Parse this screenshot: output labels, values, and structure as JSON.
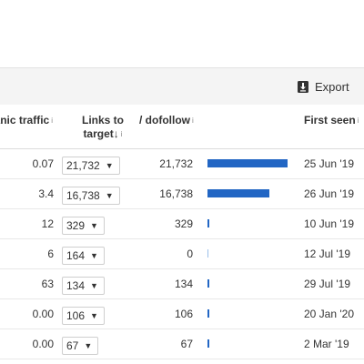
{
  "toolbar": {
    "export_label": "Export"
  },
  "columns": {
    "organic_traffic": "anic traffic",
    "links_to_target_line1": "Links to",
    "links_to_target_line2": "target",
    "dofollow": "/ dofollow",
    "first_seen": "First seen",
    "info_mark": "i",
    "sort_arrow": "↓"
  },
  "colors": {
    "bar": "#2266c4",
    "toolbar_bg": "#f4f4f4"
  },
  "rows": [
    {
      "organic_traffic": "0.07",
      "links_to_target": "21,732",
      "dofollow": "21,732",
      "dofollow_value": 21732,
      "first_seen": "25 Jun '19"
    },
    {
      "organic_traffic": "3.4",
      "links_to_target": "16,738",
      "dofollow": "16,738",
      "dofollow_value": 16738,
      "first_seen": "26 Jun '19"
    },
    {
      "organic_traffic": "12",
      "links_to_target": "329",
      "dofollow": "329",
      "dofollow_value": 329,
      "first_seen": "10 Jun '19"
    },
    {
      "organic_traffic": "6",
      "links_to_target": "164",
      "dofollow": "0",
      "dofollow_value": 0,
      "first_seen": "12 Jul '19"
    },
    {
      "organic_traffic": "63",
      "links_to_target": "134",
      "dofollow": "134",
      "dofollow_value": 134,
      "first_seen": "29 Jul '19"
    },
    {
      "organic_traffic": "0.00",
      "links_to_target": "106",
      "dofollow": "106",
      "dofollow_value": 106,
      "first_seen": "20 Jan '20"
    },
    {
      "organic_traffic": "0.00",
      "links_to_target": "67",
      "dofollow": "67",
      "dofollow_value": 67,
      "first_seen": "2 Mar '19"
    }
  ]
}
